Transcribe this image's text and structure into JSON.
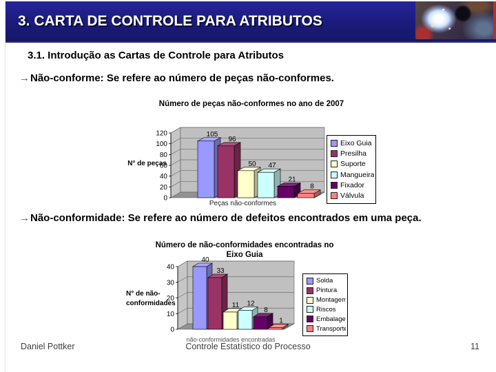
{
  "header": {
    "title": "3. CARTA DE CONTROLE PARA ATRIBUTOS",
    "bar_color": "#1a1a78",
    "accent_strip_color": "#b52f2f"
  },
  "subtitle": "3.1. Introdução as Cartas de Controle para Atributos",
  "bullets": [
    {
      "arrow": "→",
      "text": "Não-conforme: Se refere ao número de peças não-conformes."
    },
    {
      "arrow": "→",
      "text": "Não-conformidade: Se refere ao número de defeitos encontrados em uma peça."
    }
  ],
  "chart_data": [
    {
      "type": "bar",
      "style": "3d",
      "title": "Número de peças não-conformes no ano de 2007",
      "ylabel": "N° de peças",
      "xlabel": "Peças não-conformes",
      "categories": [
        "Eixo Guia",
        "Presilha",
        "Suporte",
        "Mangueira",
        "Fixador",
        "Válvula"
      ],
      "values": [
        105,
        96,
        50,
        47,
        21,
        8
      ],
      "colors": [
        "#9999FF",
        "#993366",
        "#FFFFCC",
        "#CCFFFF",
        "#660066",
        "#FF8080"
      ],
      "ylim": [
        0,
        120
      ],
      "ytick_step": 20,
      "grid": true,
      "legend_position": "right"
    },
    {
      "type": "bar",
      "style": "3d",
      "title": "Número de não-conformidades encontradas no",
      "title2": "Eixo Guia",
      "ylabel": "N° de não-conformidades",
      "xlabel": "não-conformidades encontradas",
      "categories": [
        "Solda",
        "Pintura",
        "Montagem",
        "Riscos",
        "Embalagem",
        "Transporte"
      ],
      "values": [
        40,
        33,
        11,
        12,
        8,
        1
      ],
      "colors": [
        "#9999FF",
        "#993366",
        "#FFFFCC",
        "#CCFFFF",
        "#660066",
        "#FF8080"
      ],
      "ylim": [
        0,
        40
      ],
      "ytick_step": 10,
      "grid": true,
      "legend_position": "right"
    }
  ],
  "footer": {
    "author": "Daniel Pottker",
    "course": "Controle Estatístico do Processo",
    "page": "11"
  }
}
